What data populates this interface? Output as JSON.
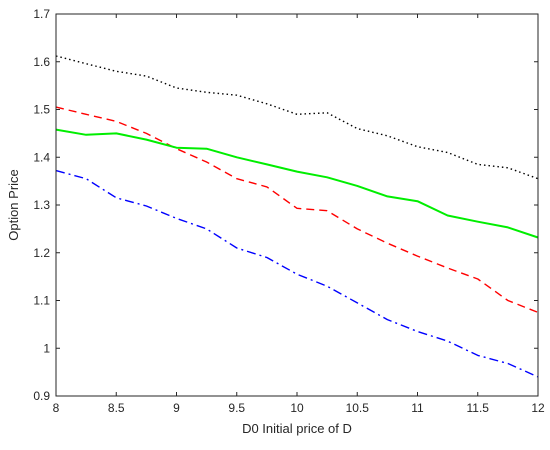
{
  "chart_data": {
    "type": "line",
    "title": "",
    "xlabel": "D0 Initial price of D",
    "ylabel": "Option Price",
    "xlim": [
      8,
      12
    ],
    "ylim": [
      0.9,
      1.7
    ],
    "xticks": [
      8,
      8.5,
      9,
      9.5,
      10,
      10.5,
      11,
      11.5,
      12
    ],
    "yticks": [
      0.9,
      1,
      1.1,
      1.2,
      1.3,
      1.4,
      1.5,
      1.6,
      1.7
    ],
    "xtick_labels": [
      "8",
      "8.5",
      "9",
      "9.5",
      "10",
      "10.5",
      "11",
      "11.5",
      "12"
    ],
    "ytick_labels": [
      "0.9",
      "1",
      "1.1",
      "1.2",
      "1.3",
      "1.4",
      "1.5",
      "1.6",
      "1.7"
    ],
    "grid": false,
    "legend": "none",
    "x": [
      8,
      8.25,
      8.5,
      8.75,
      9,
      9.25,
      9.5,
      9.75,
      10,
      10.25,
      10.5,
      10.75,
      11,
      11.25,
      11.5,
      11.75,
      12
    ],
    "series": [
      {
        "color": "#000000",
        "style": "dotted",
        "values": [
          1.612,
          1.596,
          1.58,
          1.57,
          1.545,
          1.536,
          1.53,
          1.512,
          1.49,
          1.493,
          1.46,
          1.445,
          1.422,
          1.41,
          1.385,
          1.378,
          1.355
        ]
      },
      {
        "color": "#ff0000",
        "style": "dashed",
        "values": [
          1.505,
          1.49,
          1.475,
          1.45,
          1.418,
          1.39,
          1.355,
          1.338,
          1.293,
          1.288,
          1.25,
          1.22,
          1.193,
          1.168,
          1.145,
          1.1,
          1.075
        ]
      },
      {
        "color": "#00ee00",
        "style": "solid",
        "values": [
          1.458,
          1.447,
          1.45,
          1.437,
          1.42,
          1.418,
          1.4,
          1.385,
          1.37,
          1.358,
          1.34,
          1.318,
          1.308,
          1.278,
          1.265,
          1.253,
          1.232
        ]
      },
      {
        "color": "#0000ff",
        "style": "dashdot",
        "values": [
          1.372,
          1.355,
          1.315,
          1.298,
          1.272,
          1.25,
          1.21,
          1.19,
          1.155,
          1.13,
          1.095,
          1.06,
          1.035,
          1.015,
          0.985,
          0.968,
          0.94
        ]
      }
    ]
  }
}
